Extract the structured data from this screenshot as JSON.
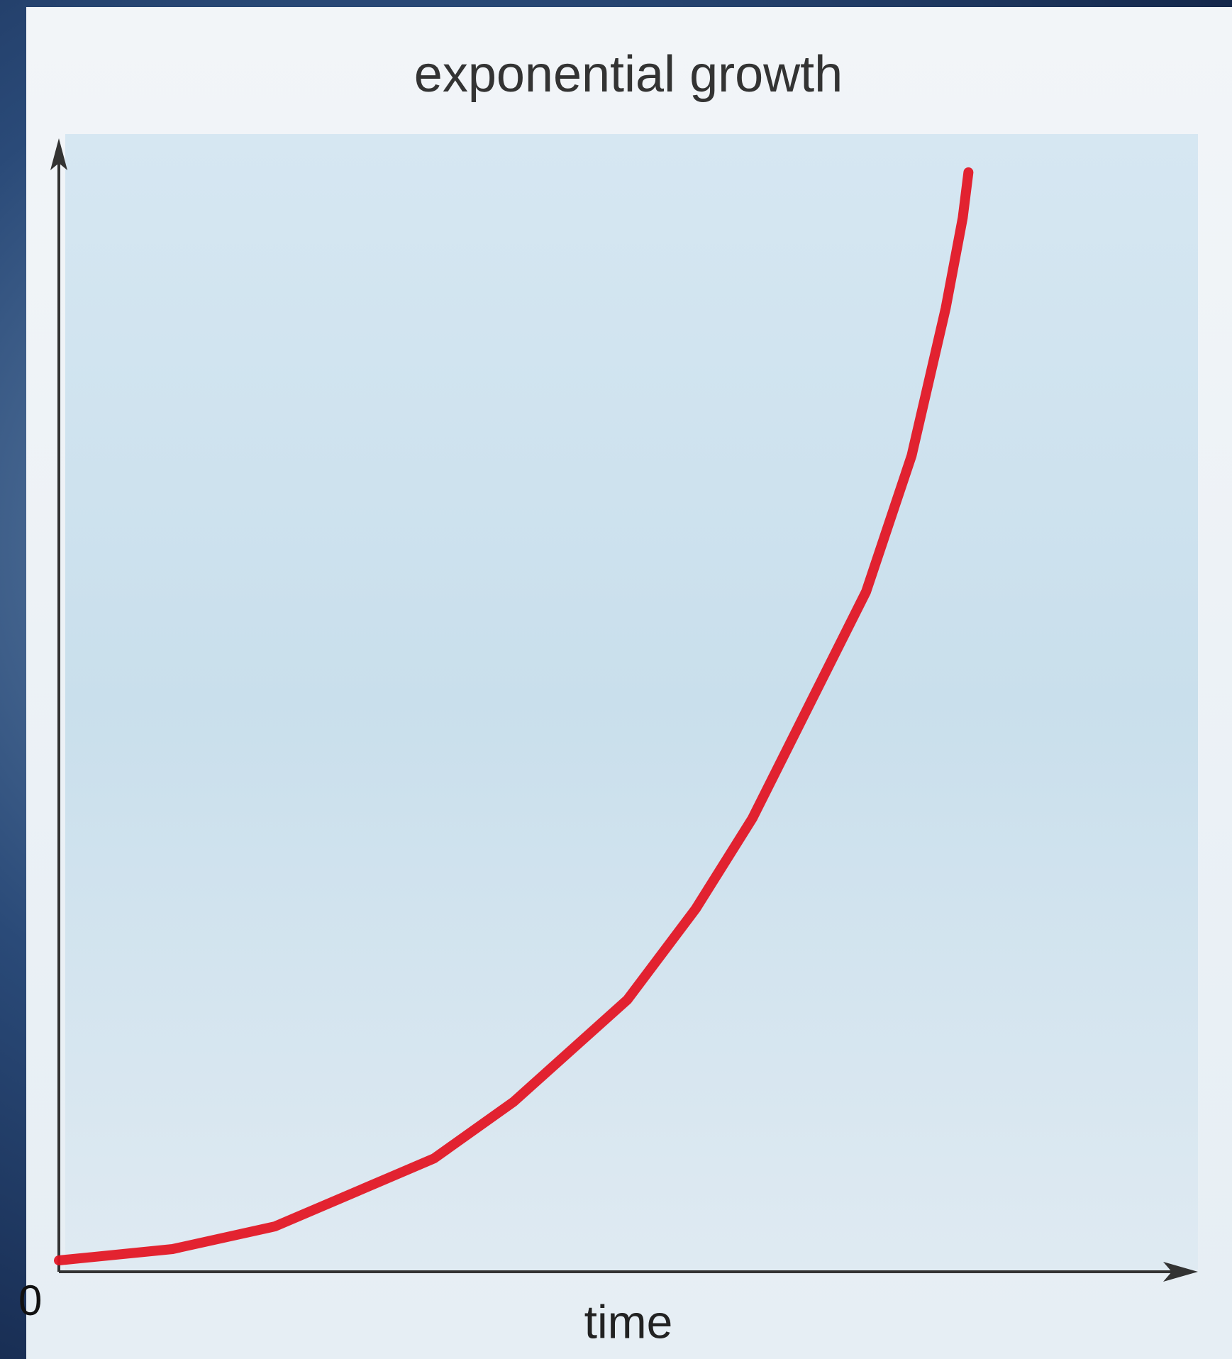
{
  "chart_data": {
    "type": "line",
    "title": "exponential growth",
    "x_label": "time",
    "origin_label": "0",
    "x": [
      0,
      10,
      19,
      33,
      40,
      50,
      56,
      61,
      67,
      71,
      75,
      78,
      79.5,
      80
    ],
    "values": [
      1,
      2,
      4,
      10,
      15,
      24,
      32,
      40,
      52,
      60,
      72,
      85,
      93,
      97
    ],
    "color": "#e3111f",
    "xlim": [
      0,
      100
    ],
    "ylim": [
      0,
      100
    ],
    "grid": false
  }
}
